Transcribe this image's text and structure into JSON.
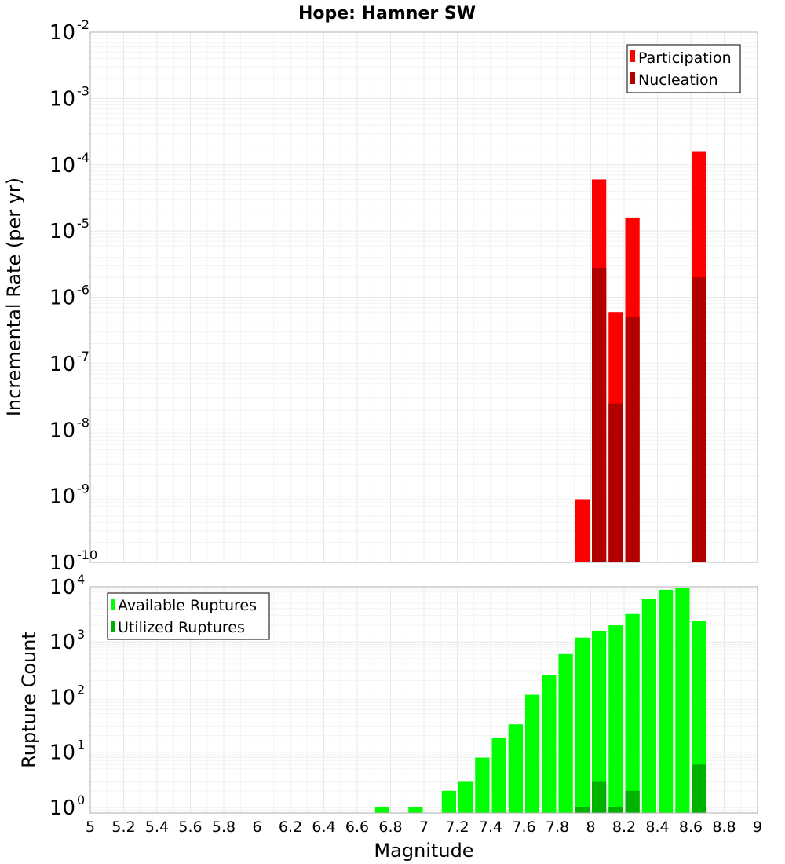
{
  "chart_data": [
    {
      "type": "bar",
      "title": "Hope: Hamner SW",
      "xlabel": "",
      "ylabel": "Incremental Rate (per yr)",
      "yscale": "log",
      "xlim": [
        5,
        9
      ],
      "ylim_exponents": [
        -10,
        -2
      ],
      "ytick_base": "10",
      "ytick_exponents": [
        "-10",
        "-9",
        "-8",
        "-7",
        "-6",
        "-5",
        "-4",
        "-3",
        "-2"
      ],
      "bin_width": 0.1,
      "grid": true,
      "legend_position": "top-right",
      "series": [
        {
          "name": "Participation",
          "color": "#ff0000",
          "x": [
            7.95,
            8.05,
            8.15,
            8.25,
            8.65
          ],
          "values": [
            9e-10,
            6e-05,
            6e-07,
            1.6e-05,
            0.00016
          ]
        },
        {
          "name": "Nucleation",
          "color": "#b20000",
          "x": [
            8.05,
            8.15,
            8.25,
            8.65
          ],
          "values": [
            2.8e-06,
            2.5e-08,
            5e-07,
            2e-06
          ]
        }
      ]
    },
    {
      "type": "bar",
      "title": "",
      "xlabel": "Magnitude",
      "ylabel": "Rupture Count",
      "yscale": "log",
      "xlim": [
        5,
        9
      ],
      "ylim_exponents": [
        -0.1,
        4
      ],
      "ytick_base": "10",
      "ytick_exponents": [
        "0",
        "1",
        "2",
        "3",
        "4"
      ],
      "xticks": [
        "5",
        "5.2",
        "5.4",
        "5.6",
        "5.8",
        "6",
        "6.2",
        "6.4",
        "6.6",
        "6.8",
        "7",
        "7.2",
        "7.4",
        "7.6",
        "7.8",
        "8",
        "8.2",
        "8.4",
        "8.6",
        "8.8",
        "9"
      ],
      "bin_width": 0.1,
      "grid": true,
      "legend_position": "top-left",
      "series": [
        {
          "name": "Available Ruptures",
          "color": "#00ff00",
          "x": [
            6.75,
            6.95,
            7.15,
            7.25,
            7.35,
            7.45,
            7.55,
            7.65,
            7.75,
            7.85,
            7.95,
            8.05,
            8.15,
            8.25,
            8.35,
            8.45,
            8.55,
            8.65
          ],
          "values": [
            1,
            1,
            2,
            3,
            8,
            18,
            32,
            110,
            250,
            600,
            1200,
            1600,
            2000,
            3200,
            6000,
            8800,
            9600,
            2400
          ]
        },
        {
          "name": "Utilized Ruptures",
          "color": "#00b200",
          "x": [
            7.95,
            8.05,
            8.15,
            8.25,
            8.65
          ],
          "values": [
            1,
            3,
            1,
            2,
            6
          ]
        }
      ]
    }
  ]
}
